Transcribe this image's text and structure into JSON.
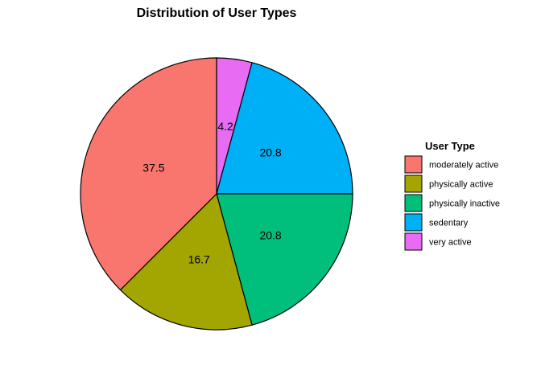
{
  "chart_data": {
    "type": "pie",
    "title": "Distribution of User Types",
    "categories": [
      "moderately active",
      "physically active",
      "physically inactive",
      "sedentary",
      "very active"
    ],
    "values": [
      37.5,
      16.7,
      20.8,
      20.8,
      4.2
    ],
    "labels": [
      "37.5",
      "16.7",
      "20.8",
      "20.8",
      "4.2"
    ],
    "colors": [
      "#F8766D",
      "#A3A500",
      "#00BF7D",
      "#00B0F6",
      "#E76BF3"
    ],
    "legend": {
      "title": "User Type",
      "position": "right"
    }
  }
}
